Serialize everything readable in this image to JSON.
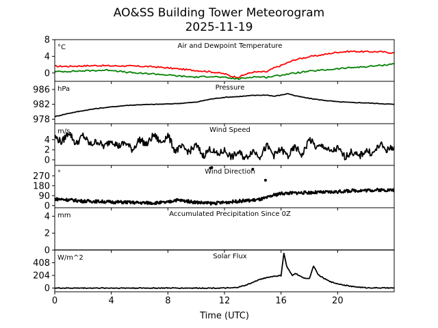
{
  "chart_data": {
    "type": "line",
    "title_line1": "AO&SS Building Tower Meteorogram",
    "title_line2": "2025-11-19",
    "xlabel": "Time (UTC)",
    "xlim": [
      0,
      24
    ],
    "xticks": [
      0,
      4,
      8,
      12,
      16,
      20
    ],
    "xtick_labels": [
      "0",
      "4",
      "8",
      "12",
      "16",
      "20"
    ],
    "colors": {
      "temperature": "#ff0000",
      "dewpoint": "#008000",
      "default": "#000000"
    },
    "panels": [
      {
        "key": "temp",
        "title": "Air and Dewpoint Temperature",
        "unit": "°C",
        "ylim": [
          -2,
          8
        ],
        "yticks": [
          0,
          4,
          8
        ],
        "ytick_labels": [
          "0",
          "4",
          "8"
        ],
        "series": [
          {
            "name": "Air Temperature",
            "color": "#ff0000",
            "x": [
              0,
              1,
              2,
              3,
              4,
              5,
              6,
              7,
              8,
              9,
              10,
              11,
              12,
              12.5,
              13,
              13.5,
              14,
              15,
              15.5,
              16,
              16.5,
              17,
              18,
              19,
              20,
              21,
              22,
              23,
              24
            ],
            "y": [
              1.6,
              1.6,
              1.7,
              1.8,
              1.7,
              1.7,
              1.6,
              1.5,
              1.2,
              0.9,
              0.6,
              0.3,
              -0.2,
              -0.8,
              -1.0,
              -0.3,
              0.2,
              0.3,
              1.2,
              1.8,
              2.5,
              3.2,
              3.9,
              4.4,
              5.0,
              5.2,
              5.1,
              5.1,
              4.8
            ]
          },
          {
            "name": "Dewpoint",
            "color": "#008000",
            "x": [
              0,
              1,
              2,
              3,
              4,
              5,
              6,
              7,
              8,
              9,
              10,
              11,
              12,
              12.5,
              13,
              13.5,
              14,
              15,
              16,
              17,
              18,
              19,
              20,
              21,
              22,
              23,
              24
            ],
            "y": [
              0.3,
              0.4,
              0.5,
              0.6,
              0.7,
              0.2,
              -0.1,
              -0.2,
              -0.5,
              -0.8,
              -1.0,
              -0.8,
              -1.1,
              -1.3,
              -1.4,
              -1.2,
              -0.9,
              -1.0,
              -0.5,
              0.0,
              0.4,
              0.7,
              1.0,
              1.3,
              1.5,
              1.8,
              2.2
            ]
          }
        ]
      },
      {
        "key": "pressure",
        "title": "Pressure",
        "unit": "hPa",
        "ylim": [
          976.8,
          988.2
        ],
        "yticks": [
          978,
          982,
          986
        ],
        "ytick_labels": [
          "978",
          "982",
          "986"
        ],
        "series": [
          {
            "name": "Pressure",
            "color": "#000000",
            "x": [
              0,
              1,
              2,
              3,
              4,
              5,
              6,
              7,
              8,
              9,
              10,
              11,
              12,
              13,
              14,
              15,
              15.5,
              16,
              16.5,
              17,
              18,
              19,
              20,
              21,
              22,
              23,
              24
            ],
            "y": [
              978.7,
              979.6,
              980.3,
              980.9,
              981.3,
              981.7,
              981.9,
              982.0,
              982.1,
              982.3,
              982.6,
              983.4,
              983.9,
              984.1,
              984.4,
              984.5,
              984.2,
              984.5,
              984.9,
              984.3,
              983.6,
              983.1,
              982.7,
              982.5,
              982.4,
              982.2,
              982.0
            ]
          }
        ]
      },
      {
        "key": "wind_speed",
        "title": "Wind Speed",
        "unit": "m/s",
        "ylim": [
          -1.1,
          7.2
        ],
        "yticks": [
          0,
          2,
          4
        ],
        "ytick_labels": [
          "0",
          "2",
          "4"
        ],
        "series": [
          {
            "name": "Wind Speed",
            "color": "#000000",
            "x": [
              0,
              0.5,
              1,
              1.5,
              2,
              2.5,
              3,
              3.5,
              4,
              4.5,
              5,
              5.5,
              6,
              6.5,
              7,
              7.5,
              8,
              8.5,
              9,
              9.5,
              10,
              10.5,
              11,
              11.5,
              12,
              12.5,
              13,
              13.5,
              14,
              14.5,
              15,
              15.5,
              16,
              16.5,
              17,
              17.5,
              18,
              18.5,
              19,
              19.5,
              20,
              20.5,
              21,
              21.5,
              22,
              22.5,
              23,
              23.5,
              24
            ],
            "y": [
              4.6,
              3.5,
              5.6,
              3.1,
              4.9,
              3.0,
              3.7,
              2.6,
              4.0,
              2.7,
              3.4,
              2.0,
              4.1,
              3.0,
              5.0,
              3.4,
              4.9,
              1.8,
              2.5,
              1.6,
              2.9,
              0.8,
              2.2,
              1.0,
              1.9,
              0.5,
              1.5,
              0.3,
              1.9,
              0.7,
              2.8,
              0.9,
              2.1,
              0.7,
              2.6,
              0.9,
              4.2,
              2.4,
              2.8,
              1.5,
              2.3,
              0.6,
              1.6,
              0.6,
              1.9,
              1.2,
              3.1,
              1.9,
              2.7
            ]
          }
        ]
      },
      {
        "key": "wind_dir",
        "title": "Wind Direction",
        "unit": "°",
        "ylim": [
          -20,
          365
        ],
        "yticks": [
          0,
          90,
          180,
          270
        ],
        "ytick_labels": [
          "0",
          "90",
          "180",
          "270"
        ],
        "series": [
          {
            "name": "Wind Direction",
            "color": "#000000",
            "x": [
              0,
              1,
              2,
              3,
              4,
              5,
              6,
              7,
              8,
              8.5,
              9,
              10,
              11,
              12,
              13,
              14,
              14.5,
              15,
              15.5,
              16,
              17,
              18,
              19,
              20,
              21,
              22,
              23,
              24
            ],
            "y": [
              60,
              52,
              40,
              38,
              32,
              30,
              25,
              24,
              28,
              50,
              45,
              30,
              20,
              28,
              40,
              48,
              55,
              70,
              95,
              110,
              115,
              118,
              120,
              125,
              135,
              138,
              142,
              140
            ]
          },
          {
            "name": "Wind Direction (isolated points)",
            "color": "#000000",
            "x": [
              11.0,
              11.1,
              14.0,
              14.9
            ],
            "y": [
              340,
              345,
              330,
              230
            ]
          }
        ]
      },
      {
        "key": "precip",
        "title": "Accumulated Precipitation Since 0Z",
        "unit": "mm",
        "ylim": [
          0,
          5
        ],
        "yticks": [
          0,
          2,
          4
        ],
        "ytick_labels": [
          "0",
          "2",
          "4"
        ],
        "series": [
          {
            "name": "Accumulated Precipitation",
            "color": "#000000",
            "x": [
              0,
              24
            ],
            "y": [
              0,
              0
            ]
          }
        ]
      },
      {
        "key": "solar",
        "title": "Solar Flux",
        "unit": "W/m^2",
        "ylim": [
          -60,
          612
        ],
        "yticks": [
          0,
          204,
          408
        ],
        "ytick_labels": [
          "0",
          "204",
          "408"
        ],
        "series": [
          {
            "name": "Solar Flux",
            "color": "#000000",
            "x": [
              0,
              12.5,
              13,
              13.5,
              14,
              14.5,
              15,
              15.5,
              16,
              16.2,
              16.4,
              16.6,
              16.8,
              17.0,
              17.5,
              18,
              18.3,
              18.6,
              19,
              19.5,
              20,
              21,
              22,
              24
            ],
            "y": [
              0,
              0,
              15,
              45,
              90,
              140,
              170,
              190,
              200,
              560,
              350,
              270,
              200,
              240,
              170,
              150,
              360,
              220,
              160,
              100,
              70,
              25,
              5,
              0
            ]
          }
        ]
      }
    ]
  }
}
